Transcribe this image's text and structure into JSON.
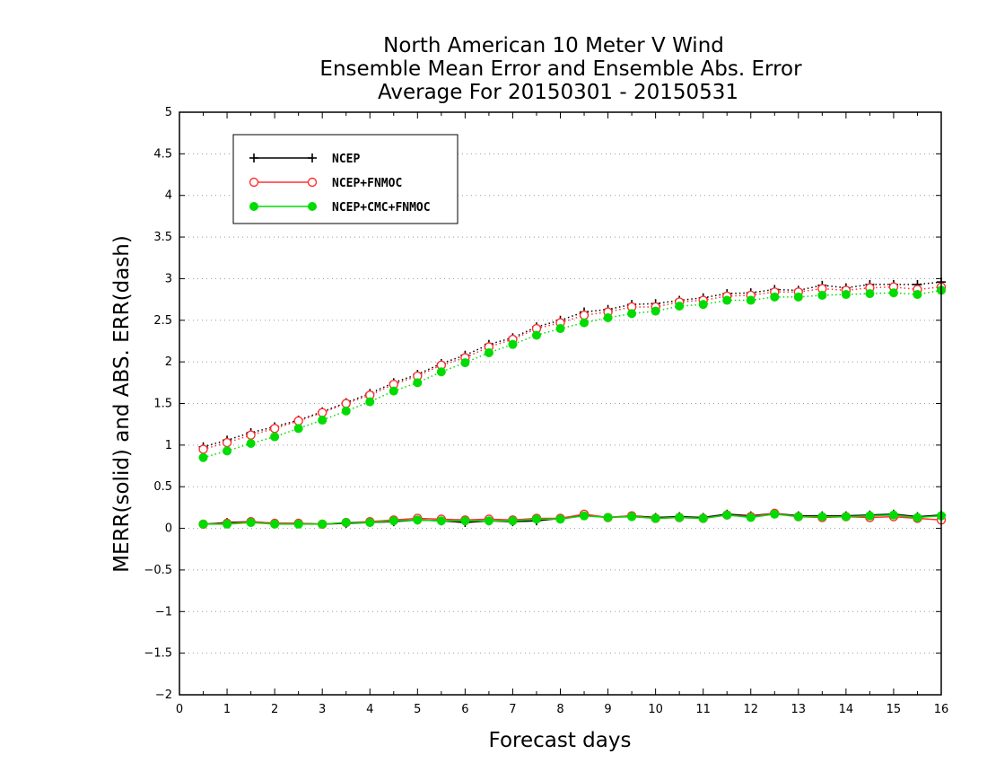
{
  "chart_data": {
    "type": "line",
    "title_lines": [
      "North American 10 Meter V Wind",
      "Ensemble Mean Error and Ensemble Abs. Error",
      "Average For 20150301 - 20150531"
    ],
    "xlabel": "Forecast days",
    "ylabel": "MERR(solid) and ABS. ERR(dash)",
    "xlim": [
      0,
      16
    ],
    "ylim": [
      -2,
      5
    ],
    "x_ticks": [
      0,
      1,
      2,
      3,
      4,
      5,
      6,
      7,
      8,
      9,
      10,
      11,
      12,
      13,
      14,
      15,
      16
    ],
    "y_ticks": [
      -2,
      -1.5,
      -1,
      -0.5,
      0,
      0.5,
      1,
      1.5,
      2,
      2.5,
      3,
      3.5,
      4,
      4.5,
      5
    ],
    "grid": true,
    "legend_position": "top-left",
    "x": [
      0.5,
      1.0,
      1.5,
      2.0,
      2.5,
      3.0,
      3.5,
      4.0,
      4.5,
      5.0,
      5.5,
      6.0,
      6.5,
      7.0,
      7.5,
      8.0,
      8.5,
      9.0,
      9.5,
      10.0,
      10.5,
      11.0,
      11.5,
      12.0,
      12.5,
      13.0,
      13.5,
      14.0,
      14.5,
      15.0,
      15.5,
      16.0
    ],
    "series": [
      {
        "name": "NCEP",
        "color": "#000000",
        "marker": "plus",
        "merr": [
          0.05,
          0.07,
          0.08,
          0.06,
          0.06,
          0.05,
          0.06,
          0.07,
          0.08,
          0.1,
          0.09,
          0.07,
          0.09,
          0.08,
          0.09,
          0.12,
          0.16,
          0.13,
          0.15,
          0.13,
          0.14,
          0.13,
          0.17,
          0.15,
          0.18,
          0.15,
          0.15,
          0.15,
          0.16,
          0.17,
          0.14,
          0.16
        ],
        "abs_err": [
          0.98,
          1.06,
          1.15,
          1.22,
          1.3,
          1.4,
          1.51,
          1.62,
          1.75,
          1.85,
          1.98,
          2.08,
          2.21,
          2.29,
          2.42,
          2.5,
          2.6,
          2.63,
          2.69,
          2.7,
          2.74,
          2.77,
          2.82,
          2.83,
          2.87,
          2.86,
          2.92,
          2.89,
          2.93,
          2.93,
          2.93,
          2.96
        ]
      },
      {
        "name": "NCEP+FNMOC",
        "color": "#ff3030",
        "marker": "open-circle",
        "merr": [
          0.05,
          0.06,
          0.08,
          0.06,
          0.06,
          0.05,
          0.07,
          0.08,
          0.1,
          0.12,
          0.11,
          0.1,
          0.11,
          0.1,
          0.12,
          0.12,
          0.17,
          0.13,
          0.15,
          0.12,
          0.13,
          0.12,
          0.16,
          0.14,
          0.18,
          0.14,
          0.13,
          0.14,
          0.13,
          0.14,
          0.12,
          0.1
        ],
        "abs_err": [
          0.95,
          1.03,
          1.12,
          1.2,
          1.29,
          1.39,
          1.5,
          1.6,
          1.73,
          1.83,
          1.96,
          2.05,
          2.18,
          2.27,
          2.4,
          2.47,
          2.56,
          2.6,
          2.66,
          2.66,
          2.72,
          2.74,
          2.79,
          2.8,
          2.84,
          2.84,
          2.88,
          2.86,
          2.89,
          2.9,
          2.87,
          2.9
        ]
      },
      {
        "name": "NCEP+CMC+FNMOC",
        "color": "#00dc00",
        "marker": "filled-circle",
        "merr": [
          0.05,
          0.05,
          0.07,
          0.05,
          0.05,
          0.05,
          0.07,
          0.07,
          0.09,
          0.1,
          0.09,
          0.09,
          0.09,
          0.09,
          0.11,
          0.11,
          0.15,
          0.13,
          0.14,
          0.12,
          0.13,
          0.12,
          0.16,
          0.13,
          0.17,
          0.14,
          0.14,
          0.14,
          0.15,
          0.16,
          0.13,
          0.15
        ],
        "abs_err": [
          0.85,
          0.93,
          1.02,
          1.1,
          1.2,
          1.3,
          1.41,
          1.52,
          1.65,
          1.75,
          1.88,
          1.99,
          2.11,
          2.21,
          2.32,
          2.4,
          2.47,
          2.53,
          2.58,
          2.61,
          2.67,
          2.69,
          2.74,
          2.74,
          2.78,
          2.78,
          2.8,
          2.81,
          2.82,
          2.83,
          2.81,
          2.86
        ]
      }
    ]
  }
}
